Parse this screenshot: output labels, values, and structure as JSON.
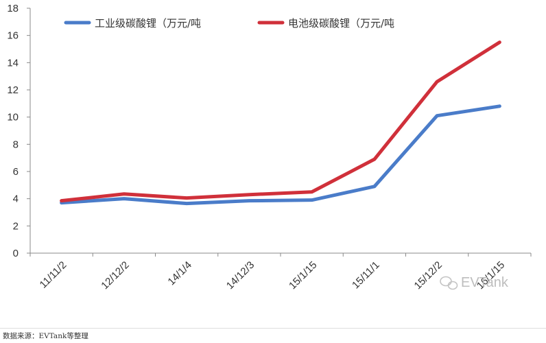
{
  "chart_data": {
    "type": "line",
    "categories": [
      "11/11/2",
      "12/12/2",
      "14/1/4",
      "14/12/3",
      "15/1/15",
      "15/11/1",
      "15/12/2",
      "16/1/15"
    ],
    "series": [
      {
        "name": "工业级碳酸锂（万元/吨",
        "color": "#4a7cc9",
        "values": [
          3.7,
          4.0,
          3.65,
          3.85,
          3.9,
          4.9,
          10.1,
          10.8
        ]
      },
      {
        "name": "电池级碳酸锂（万元/吨",
        "color": "#d0303a",
        "values": [
          3.85,
          4.35,
          4.05,
          4.3,
          4.5,
          6.9,
          12.6,
          15.5
        ]
      }
    ],
    "ylim": [
      0,
      18
    ],
    "yticks": [
      0,
      2,
      4,
      6,
      8,
      10,
      12,
      14,
      16,
      18
    ],
    "grid": false,
    "legend": "top"
  },
  "watermark": "EVTank",
  "source": "数据来源：EVTank等整理"
}
